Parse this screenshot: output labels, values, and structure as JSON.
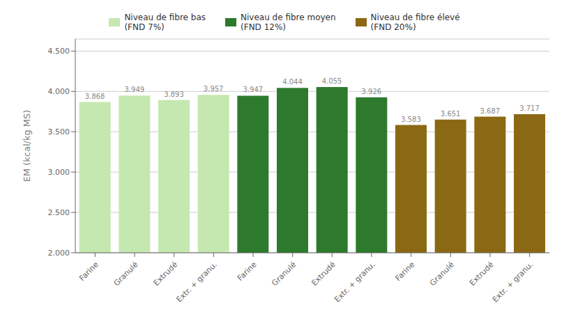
{
  "chart_data": {
    "type": "bar",
    "ylabel": "EM (kcal/kg MS)",
    "categories": [
      "Farine",
      "Granulé",
      "Extrudé",
      "Extr. + granu.",
      "Farine",
      "Granulé",
      "Extrudé",
      "Extr. + granu.",
      "Farine",
      "Granulé",
      "Extrudé",
      "Extr. + granu."
    ],
    "series": [
      {
        "name": "Niveau de fibre bas\n(FND 7%)",
        "color": "#c5e8b0",
        "values": [
          3.868,
          3.949,
          3.893,
          3.957,
          null,
          null,
          null,
          null,
          null,
          null,
          null,
          null
        ]
      },
      {
        "name": "Niveau de fibre moyen\n(FND 12%)",
        "color": "#2d7a2d",
        "values": [
          null,
          null,
          null,
          null,
          3.947,
          4.044,
          4.055,
          3.926,
          null,
          null,
          null,
          null
        ]
      },
      {
        "name": "Niveau de fibre élevé\n(FND 20%)",
        "color": "#8b6914",
        "values": [
          null,
          null,
          null,
          null,
          null,
          null,
          null,
          null,
          3.583,
          3.651,
          3.687,
          3.717
        ]
      }
    ],
    "ylim": [
      2.0,
      4.65
    ],
    "yticks": [
      {
        "value": 2.0,
        "label": "2.000"
      },
      {
        "value": 2.5,
        "label": "2.500"
      },
      {
        "value": 3.0,
        "label": "3.000"
      },
      {
        "value": 3.5,
        "label": "3.500"
      },
      {
        "value": 4.0,
        "label": "4.000"
      },
      {
        "value": 4.5,
        "label": "4.500"
      }
    ],
    "grid": true,
    "data_labels": true,
    "legend": "top"
  }
}
